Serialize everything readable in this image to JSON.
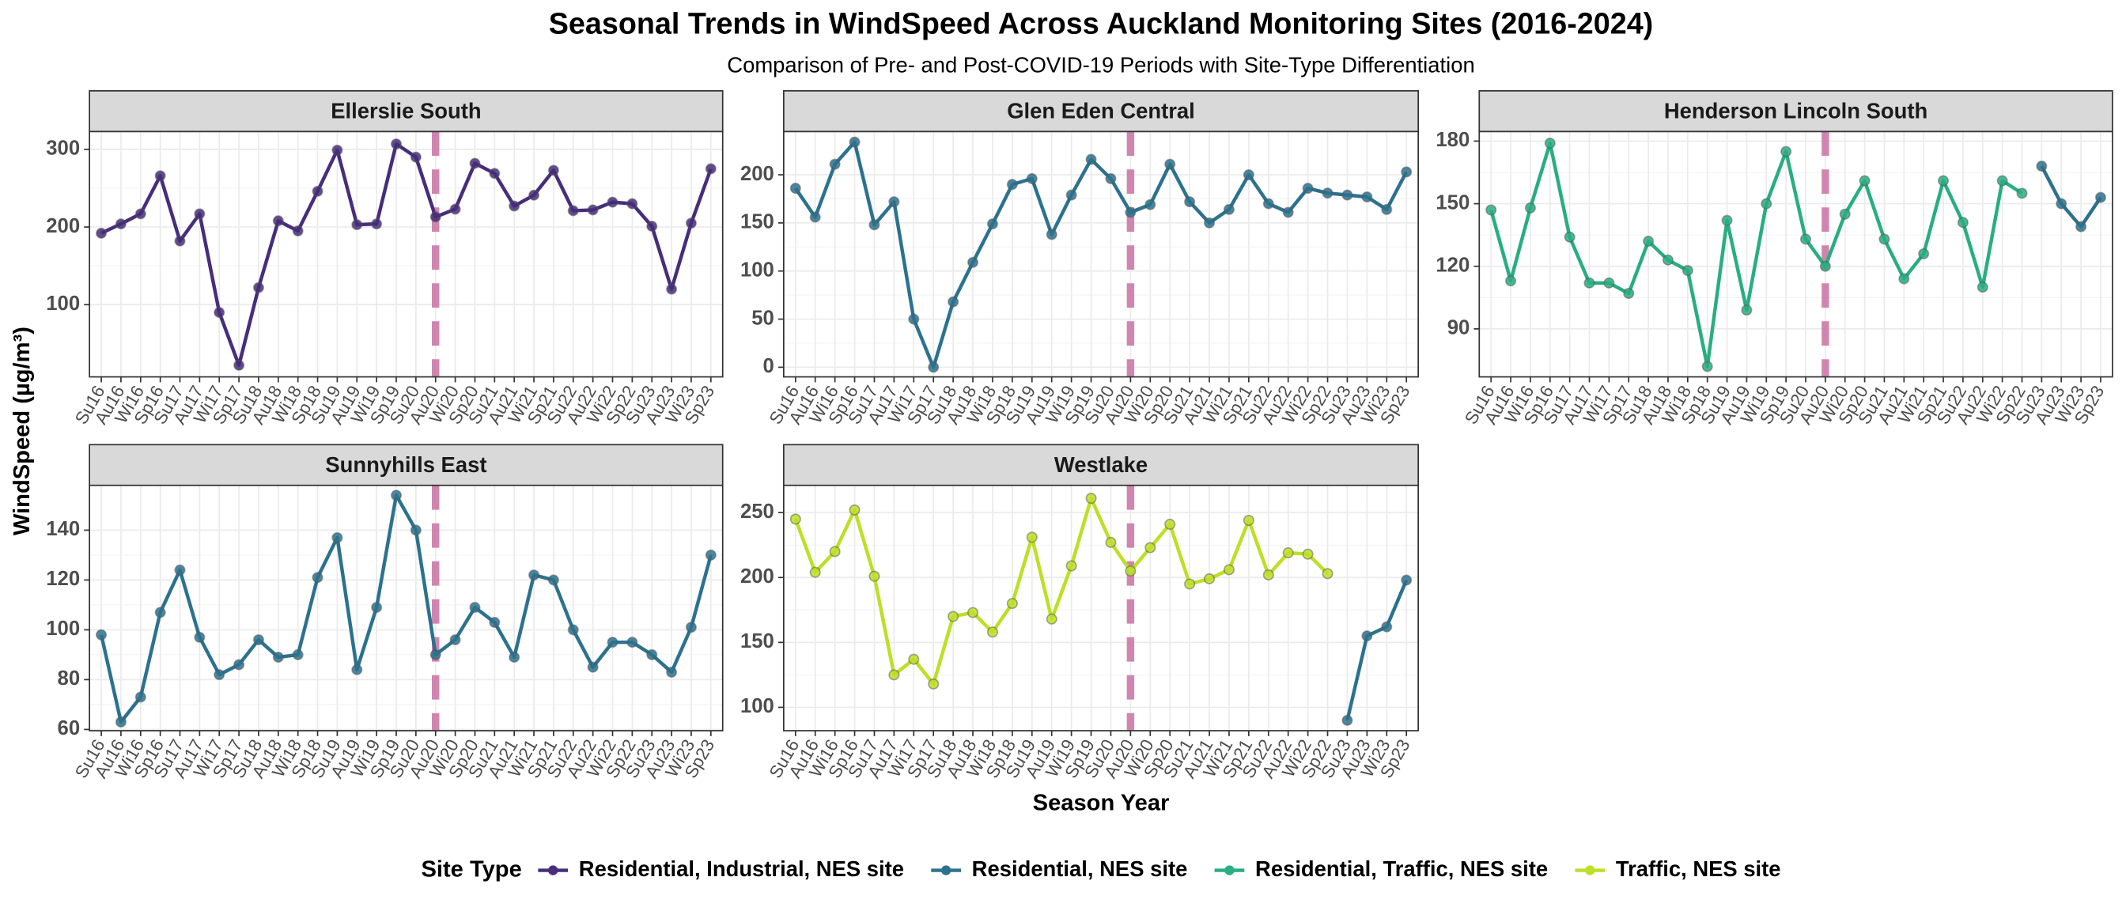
{
  "title": "Seasonal Trends in  WindSpeed  Across Auckland Monitoring Sites (2016-2024)",
  "subtitle": "Comparison of Pre- and Post-COVID-19 Periods with Site-Type Differentiation",
  "x_label": "Season Year",
  "y_label": "WindSpeed (µg/m³)",
  "legend_title": "Site Type",
  "chart_data": [
    {
      "type": "line",
      "title": "Ellerslie South",
      "categories": [
        "Su16",
        "Au16",
        "Wi16",
        "Sp16",
        "Su17",
        "Au17",
        "Wi17",
        "Sp17",
        "Su18",
        "Au18",
        "Wi18",
        "Sp18",
        "Su19",
        "Au19",
        "Wi19",
        "Sp19",
        "Su20",
        "Au20",
        "Wi20",
        "Sp20",
        "Su21",
        "Au21",
        "Wi21",
        "Sp21",
        "Su22",
        "Au22",
        "Wi22",
        "Sp22",
        "Su23",
        "Au23",
        "Wi23",
        "Sp23"
      ],
      "series": [
        {
          "name": "Residential, Industrial, NES site",
          "color": "#472d7b",
          "values": [
            192,
            204,
            217,
            266,
            182,
            217,
            90,
            22,
            122,
            208,
            195,
            246,
            299,
            203,
            204,
            307,
            290,
            213,
            223,
            282,
            269,
            227,
            241,
            273,
            221,
            222,
            232,
            230,
            201,
            120,
            205,
            275
          ]
        }
      ],
      "ylim": [
        7,
        323
      ],
      "yticks": [
        100,
        200,
        300
      ],
      "reference_line": {
        "x": "Au20",
        "color": "#cc79a7",
        "style": "dashed"
      }
    },
    {
      "type": "line",
      "title": "Glen Eden Central",
      "categories": [
        "Su16",
        "Au16",
        "Wi16",
        "Sp16",
        "Su17",
        "Au17",
        "Wi17",
        "Sp17",
        "Su18",
        "Au18",
        "Wi18",
        "Sp18",
        "Su19",
        "Au19",
        "Wi19",
        "Sp19",
        "Su20",
        "Au20",
        "Wi20",
        "Sp20",
        "Su21",
        "Au21",
        "Wi21",
        "Sp21",
        "Su22",
        "Au22",
        "Wi22",
        "Sp22",
        "Su23",
        "Au23",
        "Wi23",
        "Sp23"
      ],
      "series": [
        {
          "name": "Residential, NES site",
          "color": "#2c728e",
          "values": [
            186,
            156,
            211,
            234,
            148,
            172,
            50,
            0,
            68,
            109,
            149,
            190,
            196,
            138,
            179,
            216,
            196,
            161,
            169,
            211,
            172,
            150,
            164,
            200,
            170,
            161,
            186,
            181,
            179,
            177,
            164,
            203
          ]
        }
      ],
      "ylim": [
        -10,
        245
      ],
      "yticks": [
        0,
        50,
        100,
        150,
        200
      ],
      "reference_line": {
        "x": "Au20",
        "color": "#cc79a7",
        "style": "dashed"
      }
    },
    {
      "type": "line",
      "title": "Henderson Lincoln South",
      "categories": [
        "Su16",
        "Au16",
        "Wi16",
        "Sp16",
        "Su17",
        "Au17",
        "Wi17",
        "Sp17",
        "Su18",
        "Au18",
        "Wi18",
        "Sp18",
        "Su19",
        "Au19",
        "Wi19",
        "Sp19",
        "Su20",
        "Au20",
        "Wi20",
        "Sp20",
        "Su21",
        "Au21",
        "Wi21",
        "Sp21",
        "Su22",
        "Au22",
        "Wi22",
        "Sp22",
        "Su23",
        "Au23",
        "Wi23",
        "Sp23"
      ],
      "series": [
        {
          "name": "Residential, Traffic, NES site",
          "color": "#28ae80",
          "values": [
            147,
            113,
            148,
            179,
            134,
            112,
            112,
            107,
            132,
            123,
            118,
            72,
            142,
            99,
            150,
            175,
            133,
            120,
            145,
            161,
            133,
            114,
            126,
            161,
            141,
            110,
            161,
            155,
            null,
            null,
            null,
            null
          ]
        },
        {
          "name": "Residential, NES site",
          "color": "#2c728e",
          "values": [
            null,
            null,
            null,
            null,
            null,
            null,
            null,
            null,
            null,
            null,
            null,
            null,
            null,
            null,
            null,
            null,
            null,
            null,
            null,
            null,
            null,
            null,
            null,
            null,
            null,
            null,
            null,
            null,
            168,
            150,
            139,
            153
          ]
        }
      ],
      "ylim": [
        67,
        184.6
      ],
      "yticks": [
        90,
        120,
        150,
        180
      ],
      "reference_line": {
        "x": "Au20",
        "color": "#cc79a7",
        "style": "dashed"
      }
    },
    {
      "type": "line",
      "title": "Sunnyhills East",
      "categories": [
        "Su16",
        "Au16",
        "Wi16",
        "Sp16",
        "Su17",
        "Au17",
        "Wi17",
        "Sp17",
        "Su18",
        "Au18",
        "Wi18",
        "Sp18",
        "Su19",
        "Au19",
        "Wi19",
        "Sp19",
        "Su20",
        "Au20",
        "Wi20",
        "Sp20",
        "Su21",
        "Au21",
        "Wi21",
        "Sp21",
        "Su22",
        "Au22",
        "Wi22",
        "Sp22",
        "Su23",
        "Au23",
        "Wi23",
        "Sp23"
      ],
      "series": [
        {
          "name": "Residential, NES site",
          "color": "#2c728e",
          "values": [
            98,
            63,
            73,
            107,
            124,
            97,
            82,
            86,
            96,
            89,
            90,
            121,
            137,
            84,
            109,
            154,
            140,
            90,
            96,
            109,
            103,
            89,
            122,
            120,
            100,
            85,
            95,
            95,
            90,
            83,
            101,
            130
          ]
        }
      ],
      "ylim": [
        59.5,
        158
      ],
      "yticks": [
        60,
        80,
        100,
        120,
        140
      ],
      "reference_line": {
        "x": "Au20",
        "color": "#cc79a7",
        "style": "dashed"
      }
    },
    {
      "type": "line",
      "title": "Westlake",
      "categories": [
        "Su16",
        "Au16",
        "Wi16",
        "Sp16",
        "Su17",
        "Au17",
        "Wi17",
        "Sp17",
        "Su18",
        "Au18",
        "Wi18",
        "Sp18",
        "Su19",
        "Au19",
        "Wi19",
        "Sp19",
        "Su20",
        "Au20",
        "Wi20",
        "Sp20",
        "Su21",
        "Au21",
        "Wi21",
        "Sp21",
        "Su22",
        "Au22",
        "Wi22",
        "Sp22",
        "Su23",
        "Au23",
        "Wi23",
        "Sp23"
      ],
      "series": [
        {
          "name": "Traffic, NES site",
          "color": "#bddf26",
          "values": [
            245,
            204,
            220,
            252,
            201,
            125,
            137,
            118,
            170,
            173,
            158,
            180,
            231,
            168,
            209,
            261,
            227,
            205,
            223,
            241,
            195,
            199,
            206,
            244,
            202,
            219,
            218,
            203,
            null,
            null,
            null,
            null
          ]
        },
        {
          "name": "Residential, NES site",
          "color": "#2c728e",
          "values": [
            null,
            null,
            null,
            null,
            null,
            null,
            null,
            null,
            null,
            null,
            null,
            null,
            null,
            null,
            null,
            null,
            null,
            null,
            null,
            null,
            null,
            null,
            null,
            null,
            null,
            null,
            null,
            null,
            90,
            155,
            162,
            198
          ]
        }
      ],
      "ylim": [
        82,
        271
      ],
      "yticks": [
        100,
        150,
        200,
        250
      ],
      "reference_line": {
        "x": "Au20",
        "color": "#cc79a7",
        "style": "dashed"
      }
    }
  ]
}
